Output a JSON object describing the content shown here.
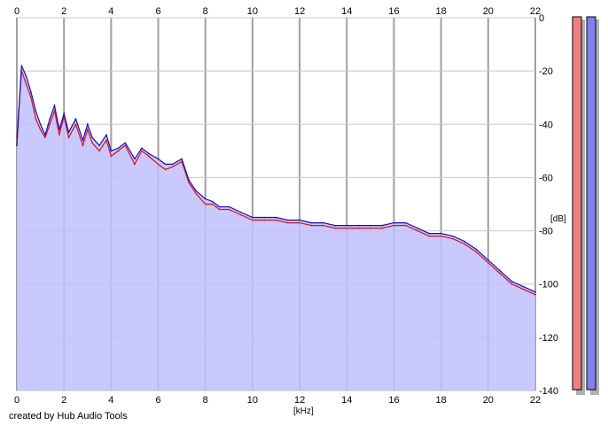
{
  "chart_data": {
    "type": "area",
    "xlabel": "[kHz]",
    "ylabel": "[dB]",
    "xlim": [
      0,
      22
    ],
    "ylim": [
      -140,
      0
    ],
    "x_ticks": [
      "0",
      "2",
      "4",
      "6",
      "8",
      "10",
      "12",
      "14",
      "16",
      "18",
      "20",
      "22"
    ],
    "y_ticks": [
      "0",
      "-20",
      "-40",
      "-60",
      "-80",
      "-100",
      "-120",
      "-140"
    ],
    "grid": true,
    "x": [
      0,
      0.2,
      0.4,
      0.6,
      0.8,
      1.0,
      1.2,
      1.4,
      1.6,
      1.8,
      2.0,
      2.2,
      2.5,
      2.8,
      3.0,
      3.2,
      3.5,
      3.8,
      4.0,
      4.3,
      4.6,
      5.0,
      5.3,
      5.6,
      6.0,
      6.3,
      6.6,
      7.0,
      7.3,
      7.6,
      8.0,
      8.3,
      8.6,
      9.0,
      9.5,
      10.0,
      10.5,
      11.0,
      11.5,
      12.0,
      12.5,
      13.0,
      13.5,
      14.0,
      14.5,
      15.0,
      15.5,
      16.0,
      16.5,
      17.0,
      17.5,
      18.0,
      18.5,
      19.0,
      19.5,
      20.0,
      20.5,
      21.0,
      21.5,
      22.0
    ],
    "series": [
      {
        "color": "#e01010",
        "values": [
          -45,
          -20,
          -25,
          -30,
          -38,
          -42,
          -45,
          -40,
          -35,
          -44,
          -37,
          -45,
          -40,
          -48,
          -42,
          -47,
          -50,
          -46,
          -52,
          -50,
          -48,
          -55,
          -50,
          -52,
          -55,
          -57,
          -56,
          -54,
          -62,
          -66,
          -70,
          -70,
          -72,
          -72,
          -74,
          -76,
          -76,
          -76,
          -77,
          -77,
          -78,
          -78,
          -79,
          -79,
          -79,
          -79,
          -79,
          -78,
          -78,
          -80,
          -82,
          -82,
          -83,
          -85,
          -88,
          -92,
          -96,
          -100,
          -102,
          -104
        ]
      },
      {
        "color": "#1010c0",
        "values": [
          -48,
          -18,
          -22,
          -28,
          -35,
          -40,
          -44,
          -38,
          -33,
          -42,
          -36,
          -43,
          -38,
          -46,
          -40,
          -45,
          -48,
          -44,
          -50,
          -49,
          -47,
          -53,
          -49,
          -51,
          -53,
          -55,
          -55,
          -53,
          -61,
          -65,
          -68,
          -69,
          -71,
          -71,
          -73,
          -75,
          -75,
          -75,
          -76,
          -76,
          -77,
          -77,
          -78,
          -78,
          -78,
          -78,
          -78,
          -77,
          -77,
          -79,
          -81,
          -81,
          -82,
          -84,
          -87,
          -91,
          -95,
          -99,
          -101,
          -103
        ]
      }
    ],
    "fill_color": "#c0c0ff",
    "meters": [
      {
        "color": "#f08080"
      },
      {
        "color": "#8080f0"
      }
    ]
  },
  "credit": "created by Hub Audio Tools"
}
